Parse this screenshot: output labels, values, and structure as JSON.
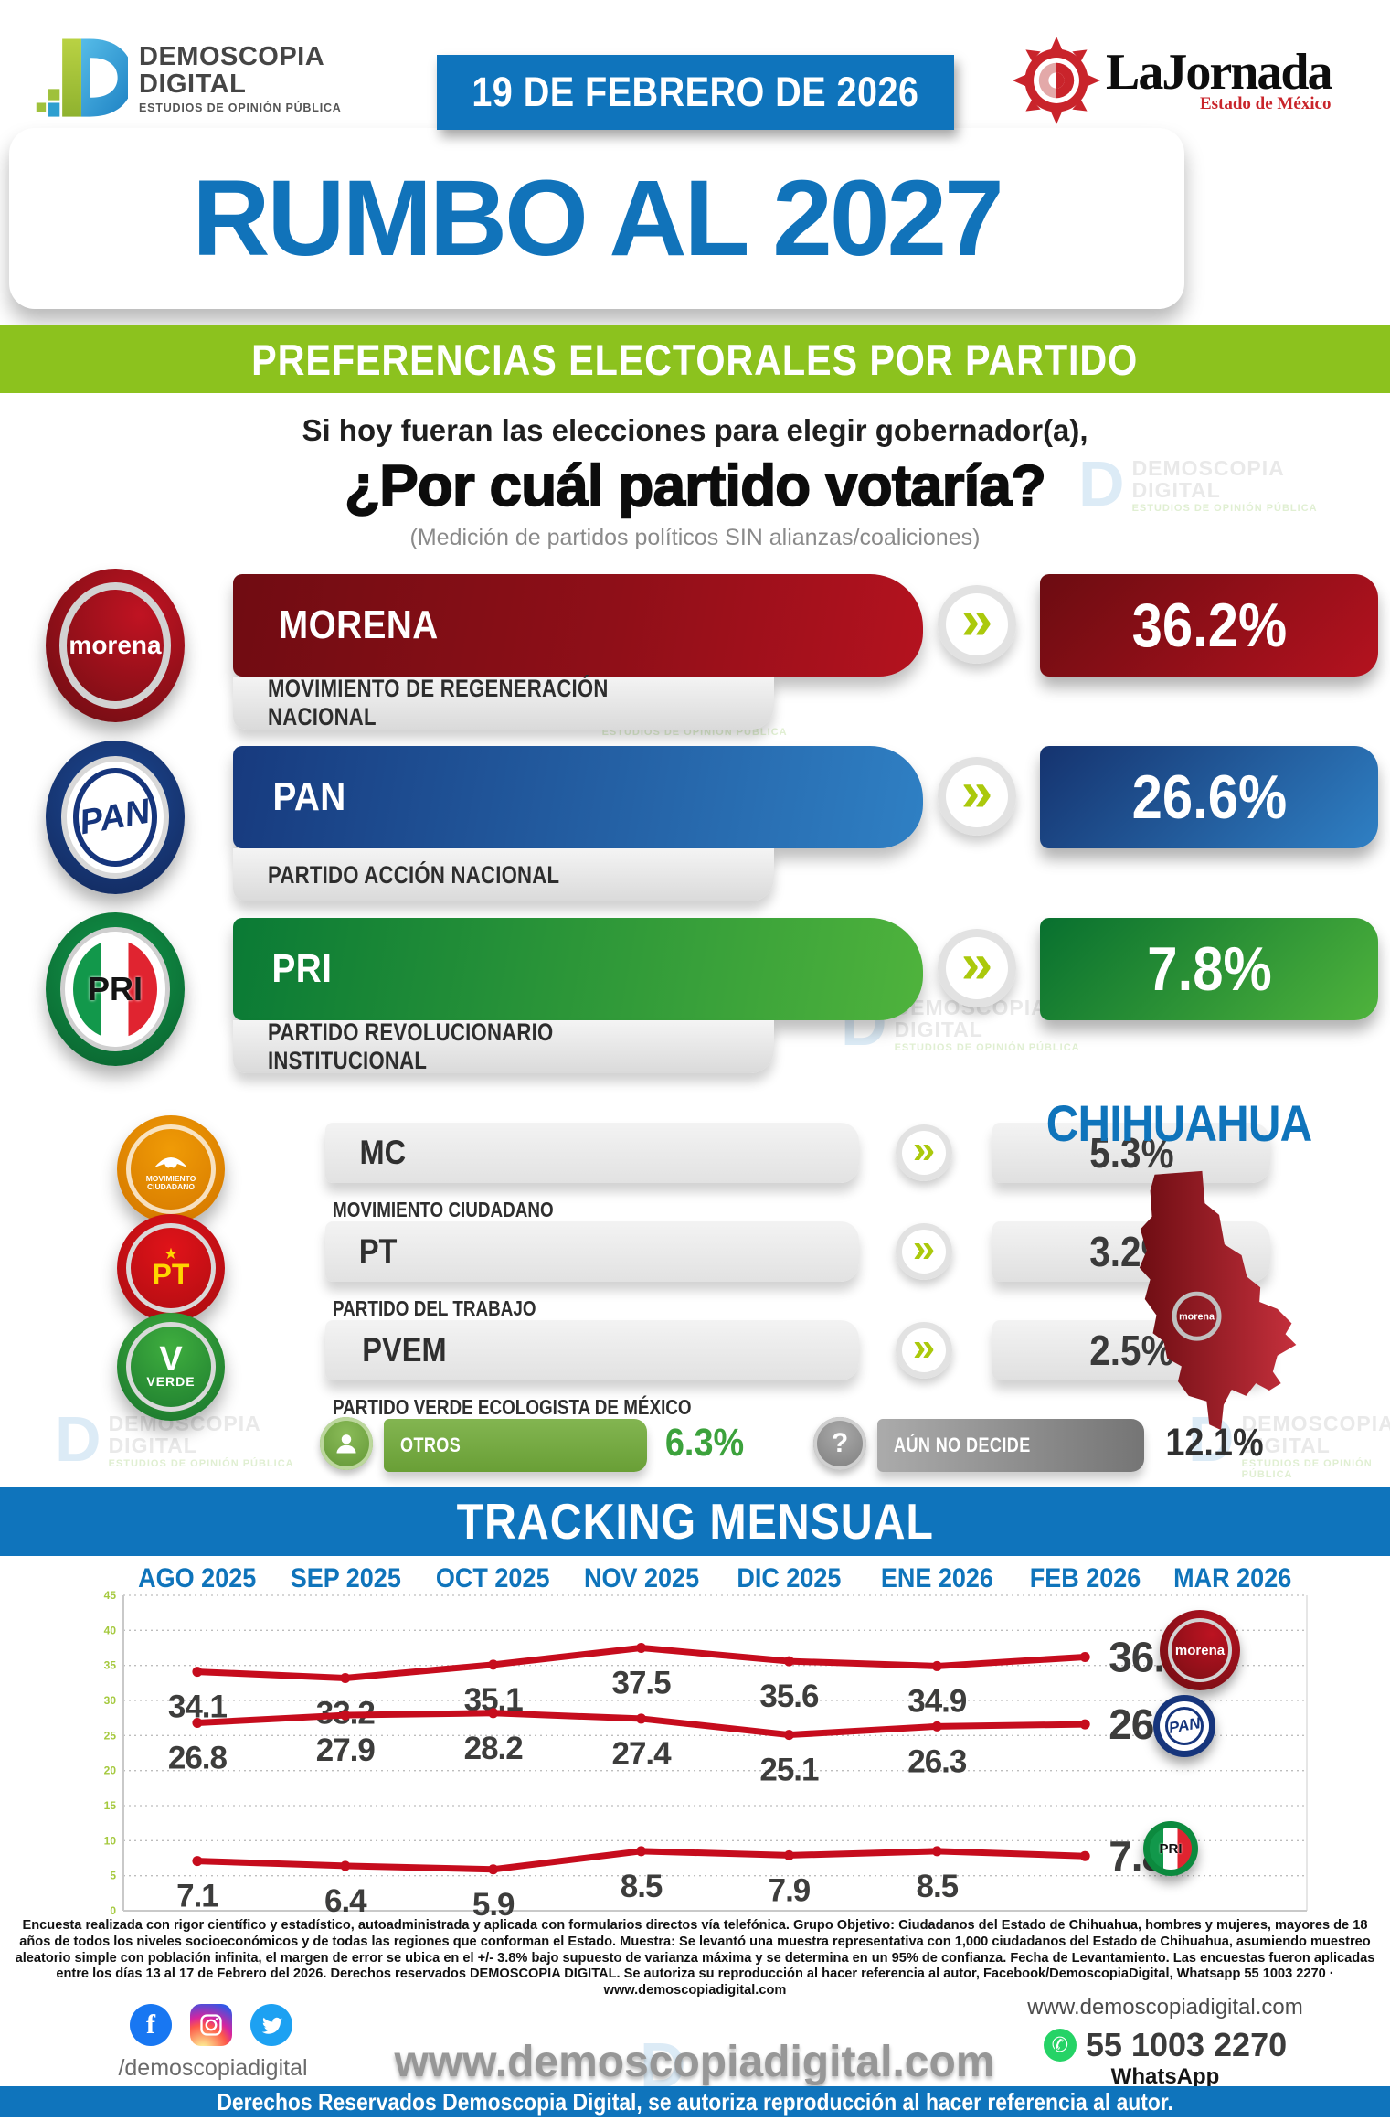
{
  "header": {
    "brand_line1": "DEMOSCOPIA",
    "brand_line2": "DIGITAL",
    "brand_sub": "ESTUDIOS DE OPINIÓN PÚBLICA",
    "date": "19 DE FEBRERO DE 2026",
    "jornada_name": "LaJornada",
    "jornada_region": "Estado de México"
  },
  "title": "RUMBO AL 2027",
  "banner": "PREFERENCIAS ELECTORALES POR PARTIDO",
  "question": {
    "line1": "Si hoy fueran las elecciones para elegir gobernador(a),",
    "line2": "¿Por cuál partido votaría?",
    "note": "(Medición de partidos políticos SIN alianzas/coaliciones)"
  },
  "parties_major": [
    {
      "abbr": "MORENA",
      "full": "MOVIMIENTO DE REGENERACIÓN NACIONAL",
      "value": "36.2%",
      "logo_text": "morena",
      "color": "#9d101b"
    },
    {
      "abbr": "PAN",
      "full": "PARTIDO ACCIÓN NACIONAL",
      "value": "26.6%",
      "logo_text": "PAN",
      "color": "#1f5ba8"
    },
    {
      "abbr": "PRI",
      "full": "PARTIDO REVOLUCIONARIO INSTITUCIONAL",
      "value": "7.8%",
      "logo_text": "PRI",
      "color": "#1d9143"
    }
  ],
  "parties_minor": [
    {
      "abbr": "MC",
      "full": "MOVIMIENTO CIUDADANO",
      "value": "5.3%",
      "logo_text": "MOVIMIENTO CIUDADANO"
    },
    {
      "abbr": "PT",
      "full": "PARTIDO DEL TRABAJO",
      "value": "3.2%",
      "logo_text": "PT",
      "logo_star": "★"
    },
    {
      "abbr": "PVEM",
      "full": "PARTIDO VERDE ECOLOGISTA DE MÉXICO",
      "value": "2.5%",
      "logo_text": "V",
      "logo_caption": "VERDE"
    }
  ],
  "others": {
    "label": "OTROS",
    "value": "6.3%"
  },
  "undecided": {
    "label": "AÚN NO DECIDE",
    "value": "12.1%",
    "icon": "?"
  },
  "state": "CHIHUAHUA",
  "map_badge": "morena",
  "tracking_title": "TRACKING MENSUAL",
  "chart_data": {
    "type": "line",
    "title": "TRACKING MENSUAL",
    "categories": [
      "AGO 2025",
      "SEP 2025",
      "OCT 2025",
      "NOV 2025",
      "DIC 2025",
      "ENE 2026",
      "FEB 2026",
      "MAR 2026"
    ],
    "series": [
      {
        "name": "MORENA",
        "values": [
          34.1,
          33.2,
          35.1,
          37.5,
          35.6,
          34.9,
          36.2
        ]
      },
      {
        "name": "PAN",
        "values": [
          26.8,
          27.9,
          28.2,
          27.4,
          25.1,
          26.3,
          26.6
        ]
      },
      {
        "name": "PRI",
        "values": [
          7.1,
          6.4,
          5.9,
          8.5,
          7.9,
          8.5,
          7.8
        ]
      }
    ],
    "ylim": [
      0,
      45
    ],
    "ytick_step": 5,
    "line_color": "#c60c1d",
    "tick_color": "#a5c93e",
    "label_color": "#3d3d3c",
    "grid": "dotted",
    "legend_position": "right"
  },
  "methodology": "Encuesta realizada con rigor científico y estadístico, autoadministrada y aplicada con formularios directos vía telefónica. Grupo Objetivo: Ciudadanos del Estado de Chihuahua, hombres y mujeres, mayores de 18 años de todos los niveles socioeconómicos y de todas las regiones que conforman el Estado. Muestra: Se levantó una muestra representativa con 1,000 ciudadanos del Estado de Chihuahua, asumiendo muestreo aleatorio simple con población infinita, el margen de error se ubica en el +/- 3.8% bajo supuesto de varianza máxima y se determina en un 95% de confianza. Fecha de Levantamiento. Las encuestas fueron aplicadas entre los días 13 al 17 de Febrero del 2026. Derechos reservados DEMOSCOPIA DIGITAL. Se autoriza su reproducción al hacer referencia al autor, Facebook/DemoscopiaDigital, Whatsapp 55 1003 2270 · www.demoscopiadigital.com",
  "footer": {
    "social_handle": "/demoscopiadigital",
    "website_big": "www.demoscopiadigital.com",
    "website_small": "www.demoscopiadigital.com",
    "phone": "55 1003 2270",
    "whatsapp_label": "WhatsApp",
    "copyright": "Derechos Reservados Demoscopia Digital, se autoriza reproducción al hacer referencia al autor."
  },
  "watermark": {
    "line1": "DEMOSCOPIA",
    "line2": "DIGITAL",
    "line3": "ESTUDIOS DE OPINIÓN PÚBLICA"
  },
  "colors": {
    "accent_blue": "#0f74bc",
    "banner_green": "#8cc21e",
    "chevron_lime": "#abc90c",
    "track_red": "#c60c1d"
  }
}
